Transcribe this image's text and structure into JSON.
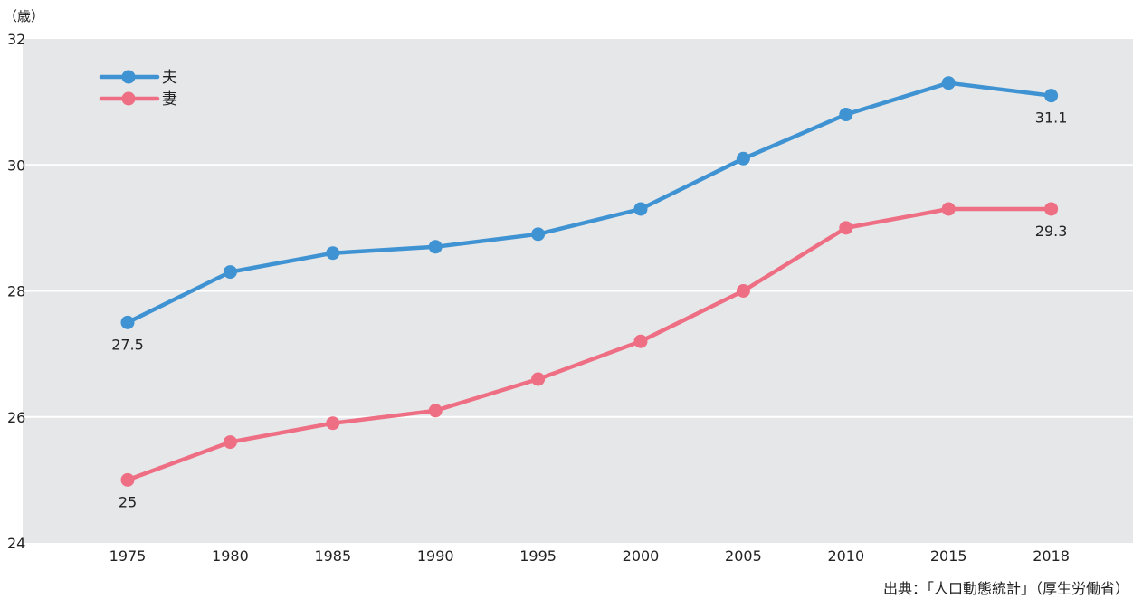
{
  "chart_data": {
    "type": "line",
    "y_unit": "（歳）",
    "x": [
      "1975",
      "1980",
      "1985",
      "1990",
      "1995",
      "2000",
      "2005",
      "2010",
      "2015",
      "2018"
    ],
    "ylim": [
      24,
      32
    ],
    "yticks": [
      24,
      26,
      28,
      30,
      32
    ],
    "grid": true,
    "legend_position": "top-left",
    "series": [
      {
        "name": "夫",
        "color": "#3f93d2",
        "values": [
          27.5,
          28.3,
          28.6,
          28.7,
          28.9,
          29.3,
          30.1,
          30.8,
          31.3,
          31.1
        ],
        "labels": [
          {
            "index": 0,
            "text": "27.5",
            "position": "below"
          },
          {
            "index": 9,
            "text": "31.1",
            "position": "below"
          }
        ]
      },
      {
        "name": "妻",
        "color": "#ee6e84",
        "values": [
          25.0,
          25.6,
          25.9,
          26.1,
          26.6,
          27.2,
          28.0,
          29.0,
          29.3,
          29.3
        ],
        "labels": [
          {
            "index": 0,
            "text": "25",
            "position": "below"
          },
          {
            "index": 9,
            "text": "29.3",
            "position": "below"
          }
        ]
      }
    ],
    "plot_background": "#e6e7e9",
    "grid_color": "#ffffff"
  },
  "source": "出典：「人口動態統計」（厚生労働省）"
}
